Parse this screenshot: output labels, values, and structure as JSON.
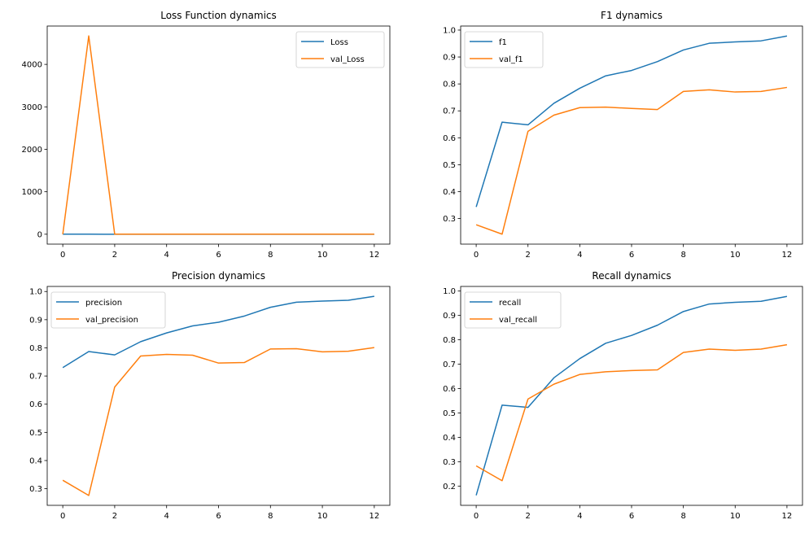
{
  "colors": {
    "series1": "#1f77b4",
    "series2": "#ff7f0e"
  },
  "chart_data": [
    {
      "type": "line",
      "title": "Loss Function dynamics",
      "x": [
        0,
        1,
        2,
        3,
        4,
        5,
        6,
        7,
        8,
        9,
        10,
        11,
        12
      ],
      "series": [
        {
          "name": "Loss",
          "values": [
            0.8,
            0.6,
            0.5,
            0.45,
            0.4,
            0.35,
            0.3,
            0.28,
            0.25,
            0.2,
            0.18,
            0.15,
            0.1
          ]
        },
        {
          "name": "val_Loss",
          "values": [
            1.0,
            4670,
            1.2,
            1.1,
            1.0,
            1.0,
            1.1,
            1.0,
            0.9,
            0.9,
            0.9,
            0.9,
            0.9
          ]
        }
      ],
      "xlim": [
        -0.6,
        12.6
      ],
      "ylim": [
        -233,
        4903
      ],
      "xticks": [
        0,
        2,
        4,
        6,
        8,
        10,
        12
      ],
      "yticks": [
        0,
        1000,
        2000,
        3000,
        4000
      ],
      "legend": "upper right"
    },
    {
      "type": "line",
      "title": "F1 dynamics",
      "x": [
        0,
        1,
        2,
        3,
        4,
        5,
        6,
        7,
        8,
        9,
        10,
        11,
        12
      ],
      "series": [
        {
          "name": "f1",
          "values": [
            0.343,
            0.658,
            0.648,
            0.728,
            0.784,
            0.83,
            0.85,
            0.883,
            0.926,
            0.951,
            0.956,
            0.96,
            0.978
          ]
        },
        {
          "name": "val_f1",
          "values": [
            0.277,
            0.242,
            0.624,
            0.684,
            0.712,
            0.714,
            0.709,
            0.705,
            0.772,
            0.778,
            0.77,
            0.772,
            0.787
          ]
        }
      ],
      "xlim": [
        -0.6,
        12.6
      ],
      "ylim": [
        0.205,
        1.015
      ],
      "xticks": [
        0,
        2,
        4,
        6,
        8,
        10,
        12
      ],
      "yticks": [
        0.3,
        0.4,
        0.5,
        0.6,
        0.7,
        0.8,
        0.9,
        1.0
      ],
      "legend": "upper left"
    },
    {
      "type": "line",
      "title": "Precision dynamics",
      "x": [
        0,
        1,
        2,
        3,
        4,
        5,
        6,
        7,
        8,
        9,
        10,
        11,
        12
      ],
      "series": [
        {
          "name": "precision",
          "values": [
            0.73,
            0.787,
            0.775,
            0.822,
            0.853,
            0.878,
            0.891,
            0.913,
            0.944,
            0.962,
            0.966,
            0.969,
            0.983
          ]
        },
        {
          "name": "val_precision",
          "values": [
            0.33,
            0.276,
            0.661,
            0.771,
            0.777,
            0.774,
            0.746,
            0.748,
            0.796,
            0.797,
            0.786,
            0.788,
            0.801
          ]
        }
      ],
      "xlim": [
        -0.6,
        12.6
      ],
      "ylim": [
        0.241,
        1.018
      ],
      "xticks": [
        0,
        2,
        4,
        6,
        8,
        10,
        12
      ],
      "yticks": [
        0.3,
        0.4,
        0.5,
        0.6,
        0.7,
        0.8,
        0.9,
        1.0
      ],
      "legend": "upper left"
    },
    {
      "type": "line",
      "title": "Recall dynamics",
      "x": [
        0,
        1,
        2,
        3,
        4,
        5,
        6,
        7,
        8,
        9,
        10,
        11,
        12
      ],
      "series": [
        {
          "name": "recall",
          "values": [
            0.162,
            0.532,
            0.523,
            0.644,
            0.723,
            0.786,
            0.818,
            0.86,
            0.916,
            0.947,
            0.954,
            0.958,
            0.978
          ]
        },
        {
          "name": "val_recall",
          "values": [
            0.283,
            0.222,
            0.557,
            0.618,
            0.658,
            0.669,
            0.674,
            0.677,
            0.748,
            0.762,
            0.757,
            0.762,
            0.78
          ]
        }
      ],
      "xlim": [
        -0.6,
        12.6
      ],
      "ylim": [
        0.121,
        1.019
      ],
      "xticks": [
        0,
        2,
        4,
        6,
        8,
        10,
        12
      ],
      "yticks": [
        0.2,
        0.3,
        0.4,
        0.5,
        0.6,
        0.7,
        0.8,
        0.9,
        1.0
      ],
      "legend": "upper left"
    }
  ]
}
